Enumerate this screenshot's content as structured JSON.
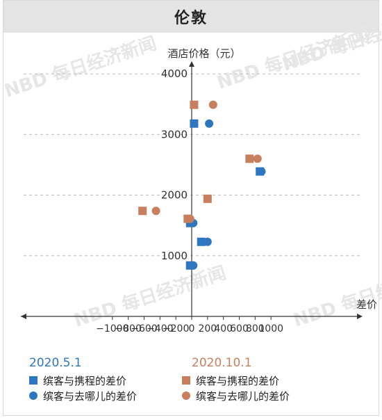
{
  "title": "伦敦",
  "colors": {
    "blue": "#2f76c0",
    "orange": "#c87f5d"
  },
  "chart_data": {
    "type": "scatter",
    "ylabel": "酒店价格（元）",
    "xlabel": "差价",
    "xlim": [
      -1000,
      1000
    ],
    "ylim": [
      0,
      4000
    ],
    "x_ticks": [
      "−1000",
      "−800",
      "−600",
      "−400",
      "−200",
      "0",
      "200",
      "400",
      "600",
      "800",
      "1000"
    ],
    "y_ticks": [
      "1000",
      "2000",
      "3000",
      "4000"
    ],
    "grid": "horizontal dashed",
    "groups": [
      {
        "name": "2020.5.1",
        "color_key": "blue"
      },
      {
        "name": "2020.10.1",
        "color_key": "orange"
      }
    ],
    "series": [
      {
        "name": "缤客与携程的差价",
        "group": "2020.5.1",
        "marker": "square",
        "points": [
          [
            30,
            3180
          ],
          [
            -20,
            1540
          ],
          [
            120,
            1230
          ],
          [
            -20,
            840
          ],
          [
            860,
            2390
          ]
        ]
      },
      {
        "name": "缤客与去哪儿的差价",
        "group": "2020.5.1",
        "marker": "circle",
        "points": [
          [
            220,
            3180
          ],
          [
            20,
            1540
          ],
          [
            200,
            1230
          ],
          [
            20,
            840
          ],
          [
            880,
            2390
          ]
        ]
      },
      {
        "name": "缤客与携程的差价",
        "group": "2020.10.1",
        "marker": "square",
        "points": [
          [
            30,
            3490
          ],
          [
            -620,
            1740
          ],
          [
            -50,
            1610
          ],
          [
            200,
            1940
          ],
          [
            730,
            2600
          ]
        ]
      },
      {
        "name": "缤客与去哪儿的差价",
        "group": "2020.10.1",
        "marker": "circle",
        "points": [
          [
            270,
            3490
          ],
          [
            -450,
            1740
          ],
          [
            -20,
            1610
          ],
          [
            830,
            2600
          ]
        ]
      }
    ]
  },
  "watermark": "NBD 每日经济新闻"
}
